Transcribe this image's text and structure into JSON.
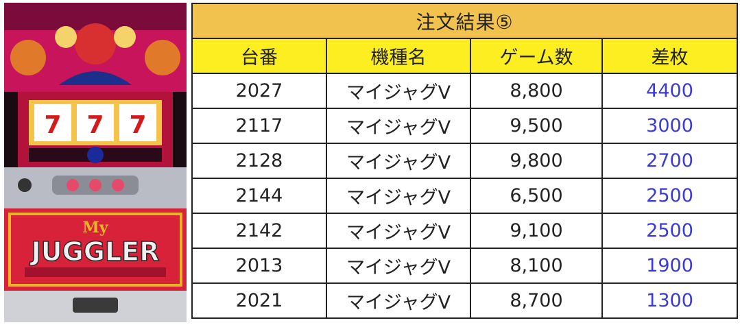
{
  "machine": {
    "logo_top": "My",
    "logo_main": "JUGGLER",
    "reel_symbols": [
      "7",
      "7",
      "7"
    ],
    "colors": {
      "cabinet_red": "#d8223a",
      "logo_gold": "#e8b52a",
      "curtain": "#c8145a"
    }
  },
  "table": {
    "title": "注文結果⑤",
    "headers": [
      "台番",
      "機種名",
      "ゲーム数",
      "差枚"
    ],
    "rows": [
      {
        "machine_no": "2027",
        "model": "マイジャグV",
        "games": "8,800",
        "diff": "4400"
      },
      {
        "machine_no": "2117",
        "model": "マイジャグV",
        "games": "9,500",
        "diff": "3000"
      },
      {
        "machine_no": "2128",
        "model": "マイジャグV",
        "games": "9,800",
        "diff": "2700"
      },
      {
        "machine_no": "2144",
        "model": "マイジャグV",
        "games": "6,500",
        "diff": "2500"
      },
      {
        "machine_no": "2142",
        "model": "マイジャグV",
        "games": "9,100",
        "diff": "2500"
      },
      {
        "machine_no": "2013",
        "model": "マイジャグV",
        "games": "8,100",
        "diff": "1900"
      },
      {
        "machine_no": "2021",
        "model": "マイジャグV",
        "games": "8,700",
        "diff": "1300"
      }
    ],
    "colors": {
      "title_bg": "#f1c24d",
      "header_bg": "#fcee21",
      "diff_text": "#3a3ad6"
    }
  }
}
